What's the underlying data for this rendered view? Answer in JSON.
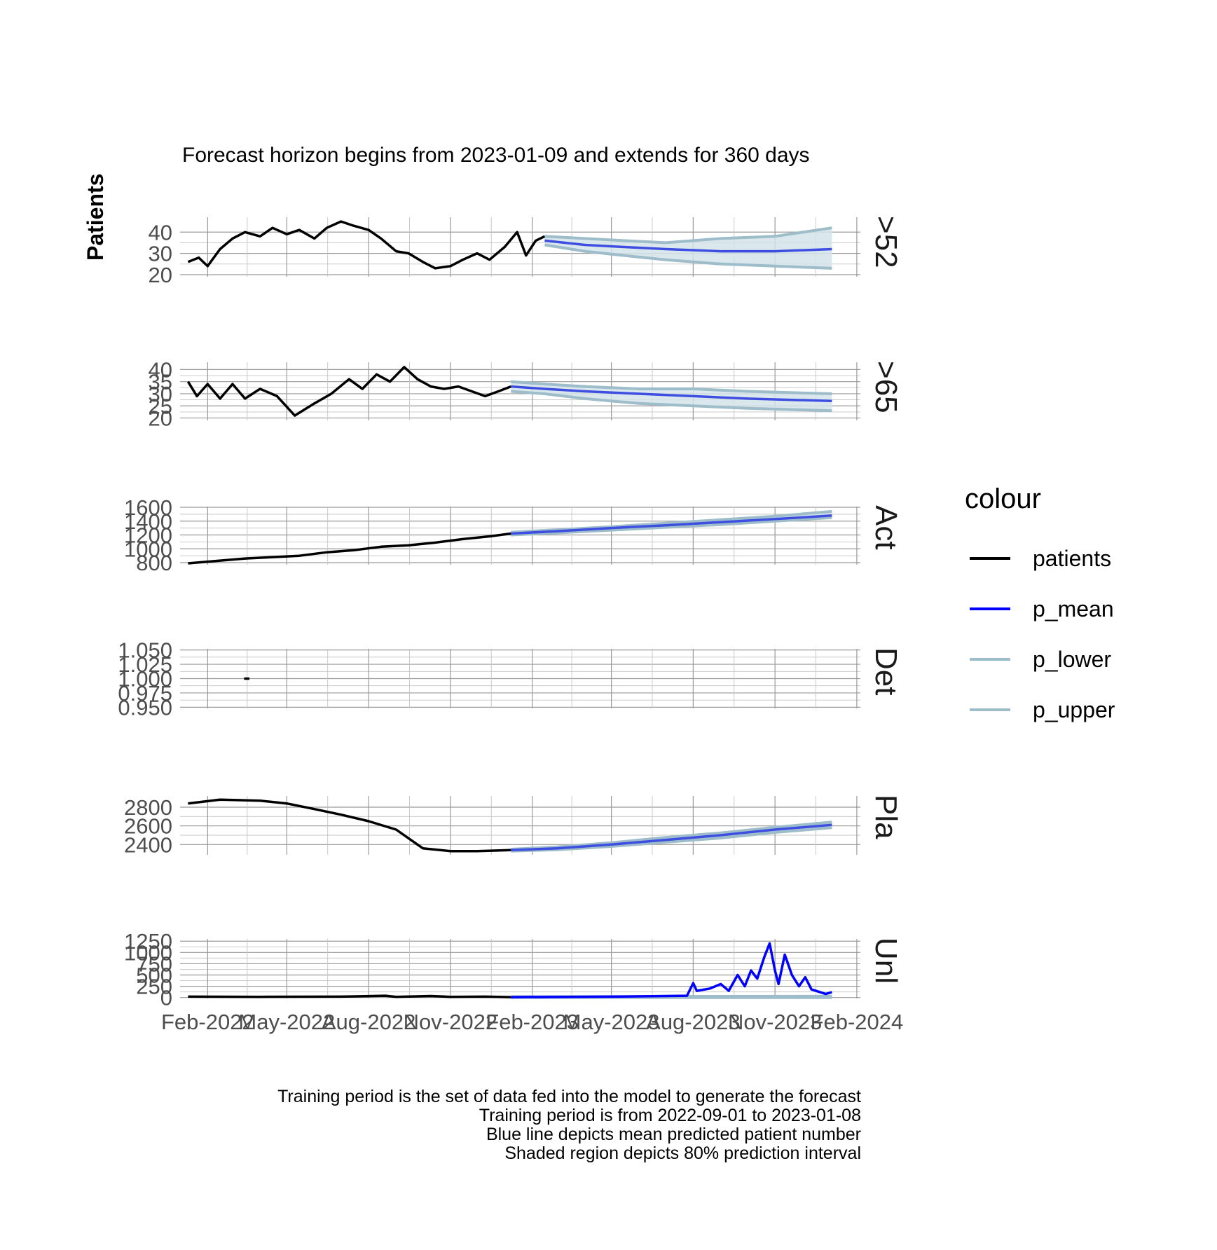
{
  "chart_data": {
    "type": "line",
    "title": "Forecast horizon begins from 2023-01-09 and extends for 360 days",
    "ylabel": "Patients",
    "caption": [
      "Training period is the set of data fed into the model to generate the forecast",
      "Training period is from 2022-09-01 to 2023-01-08",
      "Blue line depicts mean predicted patient number",
      "Shaded region depicts 80% prediction interval"
    ],
    "x_axis": {
      "type": "date",
      "range": [
        "2022-01-01",
        "2024-02-05"
      ],
      "ticks": [
        "2022-02-01",
        "2022-05-01",
        "2022-08-01",
        "2022-11-01",
        "2023-02-01",
        "2023-05-01",
        "2023-08-01",
        "2023-11-01",
        "2024-02-01"
      ],
      "tick_labels": [
        "Feb-2022",
        "May-2022",
        "Aug-2022",
        "Nov-2022",
        "Feb-2023",
        "May-2023",
        "Aug-2023",
        "Nov-2023",
        "Feb-2024"
      ]
    },
    "forecast_start": "2023-01-09",
    "forecast_end": "2024-01-04",
    "grid": true,
    "legend": {
      "title": "colour",
      "position": "right",
      "entries": [
        {
          "name": "patients",
          "color": "#000000"
        },
        {
          "name": "p_mean",
          "color": "#0000ff"
        },
        {
          "name": "p_lower",
          "color": "#9ebdca"
        },
        {
          "name": "p_upper",
          "color": "#9ebdca"
        }
      ]
    },
    "colors": {
      "patients": "#000000",
      "p_mean": "#0000ff",
      "p_mean_line": "#3d4ee0",
      "interval": "#9ebdca",
      "ribbon": "#d4e3e9"
    },
    "panels": [
      {
        "strip": ">52",
        "ylim": [
          19,
          47
        ],
        "yticks": [
          20,
          30,
          40
        ],
        "tick_labels": [
          "20",
          "30",
          "40"
        ],
        "patients": [
          [
            "2022-01-10",
            26
          ],
          [
            "2022-01-22",
            28
          ],
          [
            "2022-02-01",
            24
          ],
          [
            "2022-02-15",
            32
          ],
          [
            "2022-03-01",
            37
          ],
          [
            "2022-03-15",
            40
          ],
          [
            "2022-04-01",
            38
          ],
          [
            "2022-04-15",
            42
          ],
          [
            "2022-05-01",
            39
          ],
          [
            "2022-05-15",
            41
          ],
          [
            "2022-06-01",
            37
          ],
          [
            "2022-06-15",
            42
          ],
          [
            "2022-07-01",
            45
          ],
          [
            "2022-07-15",
            43
          ],
          [
            "2022-08-01",
            41
          ],
          [
            "2022-08-15",
            37
          ],
          [
            "2022-09-01",
            31
          ],
          [
            "2022-09-15",
            30
          ],
          [
            "2022-10-01",
            26
          ],
          [
            "2022-10-15",
            23
          ],
          [
            "2022-11-01",
            24
          ],
          [
            "2022-11-15",
            27
          ],
          [
            "2022-12-01",
            30
          ],
          [
            "2022-12-15",
            27
          ],
          [
            "2023-01-01",
            33
          ],
          [
            "2023-01-15",
            40
          ],
          [
            "2023-01-25",
            29
          ],
          [
            "2023-02-05",
            36
          ],
          [
            "2023-02-15",
            38
          ]
        ],
        "p_mean": [
          [
            "2023-02-15",
            36
          ],
          [
            "2023-04-01",
            34
          ],
          [
            "2023-05-15",
            33
          ],
          [
            "2023-07-01",
            32
          ],
          [
            "2023-09-01",
            31
          ],
          [
            "2023-11-01",
            31
          ],
          [
            "2024-01-04",
            32
          ]
        ],
        "p_lower": [
          [
            "2023-02-15",
            34
          ],
          [
            "2023-04-01",
            31
          ],
          [
            "2023-05-15",
            29
          ],
          [
            "2023-07-01",
            27
          ],
          [
            "2023-09-01",
            25
          ],
          [
            "2023-11-01",
            24
          ],
          [
            "2024-01-04",
            23
          ]
        ],
        "p_upper": [
          [
            "2023-02-15",
            38
          ],
          [
            "2023-04-01",
            37
          ],
          [
            "2023-05-15",
            36
          ],
          [
            "2023-07-01",
            35
          ],
          [
            "2023-09-01",
            37
          ],
          [
            "2023-11-01",
            38
          ],
          [
            "2024-01-04",
            42
          ]
        ]
      },
      {
        "strip": ">65",
        "ylim": [
          19,
          43
        ],
        "yticks": [
          20,
          25,
          30,
          35,
          40
        ],
        "tick_labels": [
          "20",
          "25",
          "30",
          "35",
          "40"
        ],
        "patients": [
          [
            "2022-01-10",
            35
          ],
          [
            "2022-01-20",
            29
          ],
          [
            "2022-02-01",
            34
          ],
          [
            "2022-02-15",
            28
          ],
          [
            "2022-03-01",
            34
          ],
          [
            "2022-03-15",
            28
          ],
          [
            "2022-04-01",
            32
          ],
          [
            "2022-04-20",
            29
          ],
          [
            "2022-05-10",
            21
          ],
          [
            "2022-06-01",
            26
          ],
          [
            "2022-06-20",
            30
          ],
          [
            "2022-07-10",
            36
          ],
          [
            "2022-07-25",
            32
          ],
          [
            "2022-08-10",
            38
          ],
          [
            "2022-08-25",
            35
          ],
          [
            "2022-09-10",
            41
          ],
          [
            "2022-09-25",
            36
          ],
          [
            "2022-10-10",
            33
          ],
          [
            "2022-10-25",
            32
          ],
          [
            "2022-11-10",
            33
          ],
          [
            "2022-11-25",
            31
          ],
          [
            "2022-12-10",
            29
          ],
          [
            "2022-12-25",
            31
          ],
          [
            "2023-01-08",
            33
          ]
        ],
        "p_mean": [
          [
            "2023-01-08",
            33
          ],
          [
            "2023-02-15",
            32
          ],
          [
            "2023-04-01",
            31
          ],
          [
            "2023-06-01",
            30
          ],
          [
            "2023-08-01",
            29
          ],
          [
            "2023-10-01",
            28
          ],
          [
            "2024-01-04",
            27
          ]
        ],
        "p_lower": [
          [
            "2023-01-08",
            31
          ],
          [
            "2023-02-15",
            30
          ],
          [
            "2023-04-01",
            28
          ],
          [
            "2023-06-01",
            26
          ],
          [
            "2023-08-01",
            25
          ],
          [
            "2023-10-01",
            24
          ],
          [
            "2024-01-04",
            23
          ]
        ],
        "p_upper": [
          [
            "2023-01-08",
            35
          ],
          [
            "2023-02-15",
            34
          ],
          [
            "2023-04-01",
            33
          ],
          [
            "2023-06-01",
            32
          ],
          [
            "2023-08-01",
            32
          ],
          [
            "2023-10-01",
            31
          ],
          [
            "2024-01-04",
            30
          ]
        ]
      },
      {
        "strip": "Act",
        "ylim": [
          770,
          1610
        ],
        "yticks": [
          800,
          1000,
          1200,
          1400,
          1600
        ],
        "tick_labels": [
          "800",
          "1000",
          "1200",
          "1400",
          "1600"
        ],
        "patients": [
          [
            "2022-01-10",
            790
          ],
          [
            "2022-02-15",
            830
          ],
          [
            "2022-03-15",
            860
          ],
          [
            "2022-04-15",
            880
          ],
          [
            "2022-05-15",
            900
          ],
          [
            "2022-06-15",
            950
          ],
          [
            "2022-07-15",
            980
          ],
          [
            "2022-08-15",
            1030
          ],
          [
            "2022-09-15",
            1050
          ],
          [
            "2022-10-15",
            1090
          ],
          [
            "2022-11-15",
            1140
          ],
          [
            "2022-12-15",
            1180
          ],
          [
            "2023-01-08",
            1220
          ]
        ],
        "p_mean": [
          [
            "2023-01-08",
            1220
          ],
          [
            "2023-03-01",
            1255
          ],
          [
            "2023-05-01",
            1300
          ],
          [
            "2023-07-01",
            1340
          ],
          [
            "2023-09-01",
            1385
          ],
          [
            "2023-11-01",
            1430
          ],
          [
            "2024-01-04",
            1480
          ]
        ],
        "p_lower": [
          [
            "2023-01-08",
            1200
          ],
          [
            "2023-03-01",
            1230
          ],
          [
            "2023-05-01",
            1270
          ],
          [
            "2023-07-01",
            1310
          ],
          [
            "2023-09-01",
            1350
          ],
          [
            "2023-11-01",
            1400
          ],
          [
            "2024-01-04",
            1450
          ]
        ],
        "p_upper": [
          [
            "2023-01-08",
            1240
          ],
          [
            "2023-03-01",
            1275
          ],
          [
            "2023-05-01",
            1320
          ],
          [
            "2023-07-01",
            1370
          ],
          [
            "2023-09-01",
            1420
          ],
          [
            "2023-11-01",
            1470
          ],
          [
            "2024-01-04",
            1540
          ]
        ]
      },
      {
        "strip": "Det",
        "ylim": [
          0.948,
          1.052
        ],
        "yticks": [
          0.95,
          0.975,
          1.0,
          1.025,
          1.05
        ],
        "tick_labels": [
          "0.950",
          "0.975",
          "1.000",
          "1.025",
          "1.050"
        ],
        "patients": [
          [
            "2022-03-14",
            1.0
          ],
          [
            "2022-03-20",
            1.0
          ]
        ],
        "p_mean": [],
        "p_lower": [],
        "p_upper": []
      },
      {
        "strip": "Pla",
        "ylim": [
          2290,
          2920
        ],
        "yticks": [
          2400,
          2600,
          2800
        ],
        "tick_labels": [
          "2400",
          "2600",
          "2800"
        ],
        "patients": [
          [
            "2022-01-10",
            2840
          ],
          [
            "2022-02-15",
            2880
          ],
          [
            "2022-04-01",
            2870
          ],
          [
            "2022-05-01",
            2840
          ],
          [
            "2022-06-01",
            2780
          ],
          [
            "2022-07-01",
            2720
          ],
          [
            "2022-08-01",
            2650
          ],
          [
            "2022-09-01",
            2560
          ],
          [
            "2022-10-01",
            2360
          ],
          [
            "2022-11-01",
            2330
          ],
          [
            "2022-12-01",
            2330
          ],
          [
            "2023-01-08",
            2340
          ]
        ],
        "p_mean": [
          [
            "2023-01-08",
            2340
          ],
          [
            "2023-03-01",
            2360
          ],
          [
            "2023-05-01",
            2400
          ],
          [
            "2023-07-01",
            2450
          ],
          [
            "2023-09-01",
            2500
          ],
          [
            "2023-11-01",
            2560
          ],
          [
            "2024-01-04",
            2610
          ]
        ],
        "p_lower": [
          [
            "2023-01-08",
            2330
          ],
          [
            "2023-03-01",
            2345
          ],
          [
            "2023-05-01",
            2380
          ],
          [
            "2023-07-01",
            2425
          ],
          [
            "2023-09-01",
            2470
          ],
          [
            "2023-11-01",
            2530
          ],
          [
            "2024-01-04",
            2580
          ]
        ],
        "p_upper": [
          [
            "2023-01-08",
            2350
          ],
          [
            "2023-03-01",
            2375
          ],
          [
            "2023-05-01",
            2420
          ],
          [
            "2023-07-01",
            2475
          ],
          [
            "2023-09-01",
            2525
          ],
          [
            "2023-11-01",
            2585
          ],
          [
            "2024-01-04",
            2640
          ]
        ]
      },
      {
        "strip": "Unl",
        "ylim": [
          -20,
          1300
        ],
        "yticks": [
          0,
          250,
          500,
          750,
          1000,
          1250
        ],
        "tick_labels": [
          "0",
          "250",
          "500",
          "750",
          "1000",
          "1250"
        ],
        "patients": [
          [
            "2022-01-10",
            20
          ],
          [
            "2022-04-01",
            15
          ],
          [
            "2022-07-01",
            20
          ],
          [
            "2022-08-20",
            40
          ],
          [
            "2022-09-01",
            15
          ],
          [
            "2022-10-10",
            35
          ],
          [
            "2022-11-01",
            15
          ],
          [
            "2022-12-10",
            20
          ],
          [
            "2023-01-08",
            10
          ]
        ],
        "p_mean": [
          [
            "2023-01-08",
            10
          ],
          [
            "2023-05-01",
            20
          ],
          [
            "2023-07-25",
            40
          ],
          [
            "2023-08-01",
            320
          ],
          [
            "2023-08-05",
            150
          ],
          [
            "2023-08-20",
            200
          ],
          [
            "2023-09-01",
            300
          ],
          [
            "2023-09-10",
            150
          ],
          [
            "2023-09-20",
            500
          ],
          [
            "2023-09-28",
            250
          ],
          [
            "2023-10-05",
            600
          ],
          [
            "2023-10-12",
            420
          ],
          [
            "2023-10-20",
            900
          ],
          [
            "2023-10-26",
            1200
          ],
          [
            "2023-11-01",
            600
          ],
          [
            "2023-11-05",
            300
          ],
          [
            "2023-11-12",
            950
          ],
          [
            "2023-11-20",
            500
          ],
          [
            "2023-11-28",
            250
          ],
          [
            "2023-12-05",
            450
          ],
          [
            "2023-12-12",
            180
          ],
          [
            "2023-12-20",
            130
          ],
          [
            "2023-12-28",
            80
          ],
          [
            "2024-01-04",
            120
          ]
        ],
        "p_lower": [
          [
            "2023-01-08",
            0
          ],
          [
            "2024-01-04",
            0
          ]
        ],
        "p_upper": [
          [
            "2023-01-08",
            20
          ],
          [
            "2024-01-04",
            30
          ]
        ]
      }
    ]
  }
}
